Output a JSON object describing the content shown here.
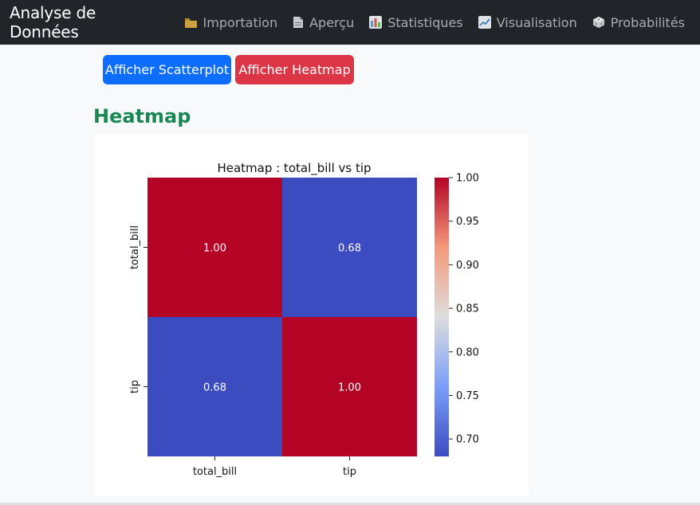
{
  "navbar": {
    "brand": "Analyse de Données",
    "items": [
      {
        "label": "Importation",
        "icon": "folder-icon"
      },
      {
        "label": "Aperçu",
        "icon": "document-icon"
      },
      {
        "label": "Statistiques",
        "icon": "bar-chart-icon"
      },
      {
        "label": "Visualisation",
        "icon": "line-chart-icon"
      },
      {
        "label": "Probabilités",
        "icon": "dice-icon"
      }
    ]
  },
  "buttons": {
    "scatter": "Afficher Scatterplot",
    "heatmap": "Afficher Heatmap"
  },
  "section": {
    "title": "Heatmap"
  },
  "colors": {
    "primary": "#0d6efd",
    "danger": "#dc3545",
    "success": "#198754",
    "heat_high": "#b40426",
    "heat_low": "#3b4cc0"
  },
  "chart_data": {
    "type": "heatmap",
    "title": "Heatmap : total_bill vs tip",
    "x_categories": [
      "total_bill",
      "tip"
    ],
    "y_categories": [
      "total_bill",
      "tip"
    ],
    "values": [
      [
        1.0,
        0.68
      ],
      [
        0.68,
        1.0
      ]
    ],
    "annotations": [
      [
        "1.00",
        "0.68"
      ],
      [
        "0.68",
        "1.00"
      ]
    ],
    "colorbar": {
      "range": [
        0.68,
        1.0
      ],
      "ticks": [
        1.0,
        0.95,
        0.9,
        0.85,
        0.8,
        0.75,
        0.7
      ],
      "tick_labels": [
        "1.00",
        "0.95",
        "0.90",
        "0.85",
        "0.80",
        "0.75",
        "0.70"
      ],
      "colormap": "coolwarm"
    }
  }
}
